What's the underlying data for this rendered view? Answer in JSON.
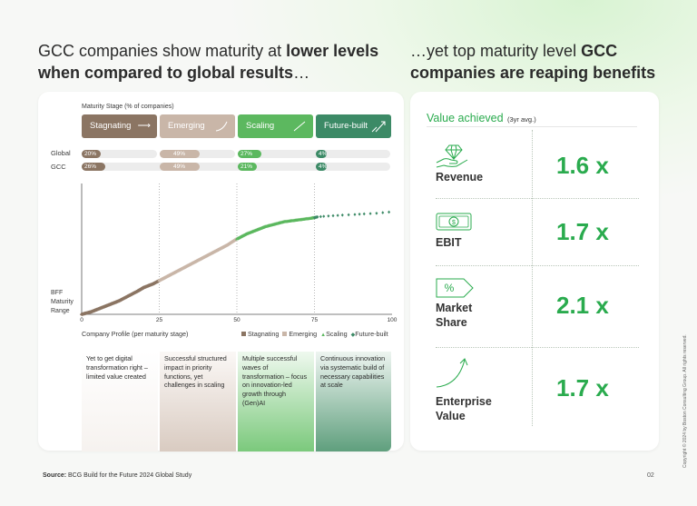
{
  "headings": {
    "left_plain1": "GCC companies show maturity at ",
    "left_bold1": "lower levels",
    "left_bold2": "when compared to global results",
    "left_plain2": "…",
    "right_plain1": "…yet top maturity level ",
    "right_bold1": "GCC",
    "right_bold2": "companies are reaping benefits"
  },
  "colors": {
    "stagnating": "#8b7563",
    "emerging": "#c9b6a8",
    "scaling": "#5cb85f",
    "future_built": "#3c8a66",
    "accent_green": "#2aab4e"
  },
  "maturity_stage_label": "Maturity Stage (% of companies)",
  "stages": [
    {
      "label": "Stagnating",
      "icon": "arrow-right-icon"
    },
    {
      "label": "Emerging",
      "icon": "curve-up-icon"
    },
    {
      "label": "Scaling",
      "icon": "diagonal-up-icon"
    },
    {
      "label": "Future-built",
      "icon": "rising-arrows-icon"
    }
  ],
  "rows": [
    {
      "label": "Global",
      "values": [
        "20%",
        "49%",
        "27%",
        "4%"
      ]
    },
    {
      "label": "GCC",
      "values": [
        "26%",
        "49%",
        "21%",
        "4%"
      ]
    }
  ],
  "chart_data": {
    "type": "scatter",
    "ylabel": "BFF Maturity Range",
    "xlabel": "Company Profile (per maturity stage)",
    "xlim": [
      0,
      100
    ],
    "x_ticks": [
      "0",
      "25",
      "50",
      "75",
      "100"
    ],
    "legend": [
      {
        "name": "Stagnating",
        "marker": "square"
      },
      {
        "name": "Emerging",
        "marker": "square"
      },
      {
        "name": "Scaling",
        "marker": "triangle"
      },
      {
        "name": "Future-built",
        "marker": "diamond"
      }
    ],
    "legend_position": "bottom-right",
    "curve": [
      [
        0,
        0.0
      ],
      [
        3,
        0.02
      ],
      [
        6,
        0.05
      ],
      [
        9,
        0.08
      ],
      [
        12,
        0.11
      ],
      [
        15,
        0.15
      ],
      [
        18,
        0.19
      ],
      [
        20,
        0.22
      ],
      [
        23,
        0.25
      ],
      [
        26,
        0.29
      ],
      [
        29,
        0.33
      ],
      [
        32,
        0.37
      ],
      [
        35,
        0.41
      ],
      [
        38,
        0.45
      ],
      [
        41,
        0.49
      ],
      [
        44,
        0.53
      ],
      [
        47,
        0.57
      ],
      [
        50,
        0.62
      ],
      [
        53,
        0.66
      ],
      [
        56,
        0.69
      ],
      [
        59,
        0.72
      ],
      [
        62,
        0.74
      ],
      [
        65,
        0.76
      ],
      [
        68,
        0.77
      ],
      [
        71,
        0.78
      ],
      [
        74,
        0.79
      ],
      [
        76,
        0.8
      ],
      [
        78,
        0.805
      ],
      [
        81,
        0.81
      ],
      [
        84,
        0.815
      ],
      [
        88,
        0.82
      ],
      [
        91,
        0.825
      ],
      [
        95,
        0.83
      ],
      [
        99,
        0.84
      ]
    ],
    "stage_boundaries": [
      25,
      50,
      75
    ]
  },
  "descriptions": [
    "Yet to get digital transformation right – limited value created",
    "Successful structured impact in priority functions, yet challenges in scaling",
    "Multiple successful waves of transformation – focus on innovation-led growth through (Gen)AI",
    "Continuous innovation via systematic build of necessary capabilities at scale"
  ],
  "value_panel": {
    "title": "Value achieved",
    "subtitle": "(3yr avg.)",
    "metrics": [
      {
        "label_line1": "Revenue",
        "label_line2": "",
        "value": "1.6 x",
        "icon": "hand-diamond-icon"
      },
      {
        "label_line1": "EBIT",
        "label_line2": "",
        "value": "1.7 x",
        "icon": "banknote-icon"
      },
      {
        "label_line1": "Market",
        "label_line2": "Share",
        "value": "2.1 x",
        "icon": "percent-tag-icon"
      },
      {
        "label_line1": "Enterprise",
        "label_line2": "Value",
        "value": "1.7 x",
        "icon": "growth-arrow-icon"
      }
    ]
  },
  "footer": {
    "source_label": "Source:",
    "source_text": "BCG Build for the Future 2024 Global Study",
    "page_number": "02",
    "copyright": "Copyright © 2024 by Boston Consulting Group. All rights reserved."
  }
}
